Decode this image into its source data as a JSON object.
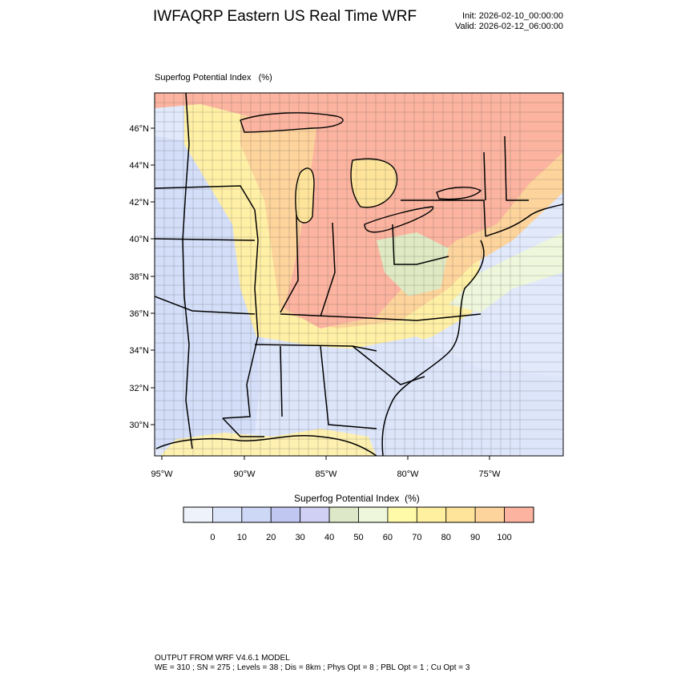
{
  "header": {
    "title": "IWFAQRP Eastern US Real Time WRF",
    "init": "Init: 2026-02-10_00:00:00",
    "valid": "Valid: 2026-02-12_06:00:00"
  },
  "field_label": "Superfog Potential Index   (%)",
  "map": {
    "lat_labels": [
      "46°N",
      "44°N",
      "42°N",
      "40°N",
      "38°N",
      "36°N",
      "34°N",
      "32°N",
      "30°N"
    ],
    "lon_labels": [
      "95°W",
      "90°W",
      "85°W",
      "80°W",
      "75°W"
    ]
  },
  "legend": {
    "title": "Superfog Potential Index  (%)",
    "colors": [
      "#eef2fb",
      "#dde5fa",
      "#cdd8f7",
      "#c0c8f2",
      "#d0d0f4",
      "#dde8c8",
      "#eef6dc",
      "#fffaa8",
      "#fff0a0",
      "#fde49a",
      "#fdd49c",
      "#fcb4a0"
    ],
    "tick_labels": [
      "0",
      "10",
      "20",
      "30",
      "40",
      "50",
      "60",
      "70",
      "80",
      "90",
      "100"
    ]
  },
  "footer": {
    "line1": "OUTPUT FROM WRF V4.6.1 MODEL",
    "line2": "WE = 310 ; SN = 275 ; Levels = 38 ; Dis = 8km ; Phys Opt = 8 ; PBL Opt = 1 ; Cu Opt = 3"
  }
}
